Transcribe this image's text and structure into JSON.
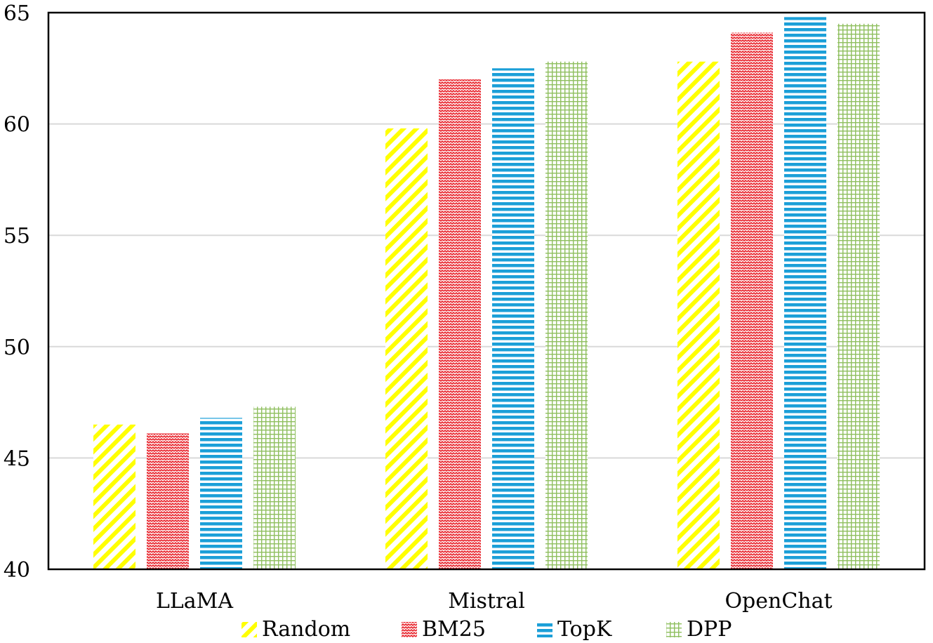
{
  "chart_data": {
    "type": "bar",
    "categories": [
      "LLaMA",
      "Mistral",
      "OpenChat"
    ],
    "series": [
      {
        "name": "Random",
        "values": [
          46.5,
          59.8,
          62.8
        ],
        "color": "#ffff00",
        "pattern": "diagonal-stripes"
      },
      {
        "name": "BM25",
        "values": [
          46.1,
          62.0,
          64.1
        ],
        "color": "#e8242c",
        "pattern": "zigzag"
      },
      {
        "name": "TopK",
        "values": [
          46.8,
          62.5,
          64.8
        ],
        "color": "#1b9fd8",
        "pattern": "horizontal-stripes"
      },
      {
        "name": "DPP",
        "values": [
          47.3,
          62.8,
          64.5
        ],
        "color": "#8fbf5f",
        "pattern": "grid"
      }
    ],
    "ylim": [
      40,
      65
    ],
    "yticks": [
      "40",
      "45",
      "50",
      "55",
      "60",
      "65"
    ],
    "title": "",
    "xlabel": "",
    "ylabel": "",
    "grid": true,
    "legend_position": "bottom"
  }
}
